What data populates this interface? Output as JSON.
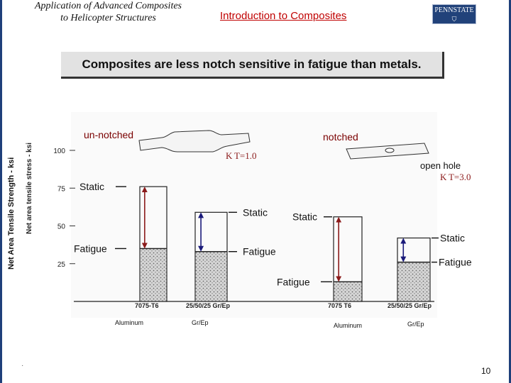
{
  "slide": {
    "course_title": [
      "Application of Advanced Composites",
      "to Helicopter Structures"
    ],
    "section_title": "Introduction to Composites",
    "logo_text": "PENNSTATE",
    "banner": "Composites are less notch sensitive in fatigue than metals.",
    "page_number": "10"
  },
  "chart_data": {
    "type": "bar",
    "ylabel": "Net Area Tensile Strength - ksi",
    "inner_ylabel": "Net area tensile stress - ksi",
    "ylim": [
      0,
      100
    ],
    "yticks": [
      25,
      50,
      75,
      100
    ],
    "groups": [
      {
        "name": "un-notched",
        "kt": "K T=1.0",
        "categories": [
          "7075-T6",
          "25/50/25 Gr/Ep"
        ],
        "materials": [
          "Aluminum",
          "Gr/Ep"
        ],
        "static": [
          76,
          59
        ],
        "fatigue": [
          35,
          33
        ]
      },
      {
        "name": "notched",
        "kt": "K T=3.0",
        "hole_label": "open hole",
        "categories": [
          "7075 T6",
          "25/50/25 Gr/Ep"
        ],
        "materials": [
          "Aluminum",
          "Gr/Ep"
        ],
        "static": [
          56,
          42
        ],
        "fatigue": [
          13,
          26
        ]
      }
    ],
    "annotations": {
      "static": "Static",
      "fatigue": "Fatigue"
    },
    "colors": {
      "arrow_left": "#8b1a1a",
      "arrow_right": "#1a1a7a",
      "hatch": "#8a8a8a"
    }
  }
}
